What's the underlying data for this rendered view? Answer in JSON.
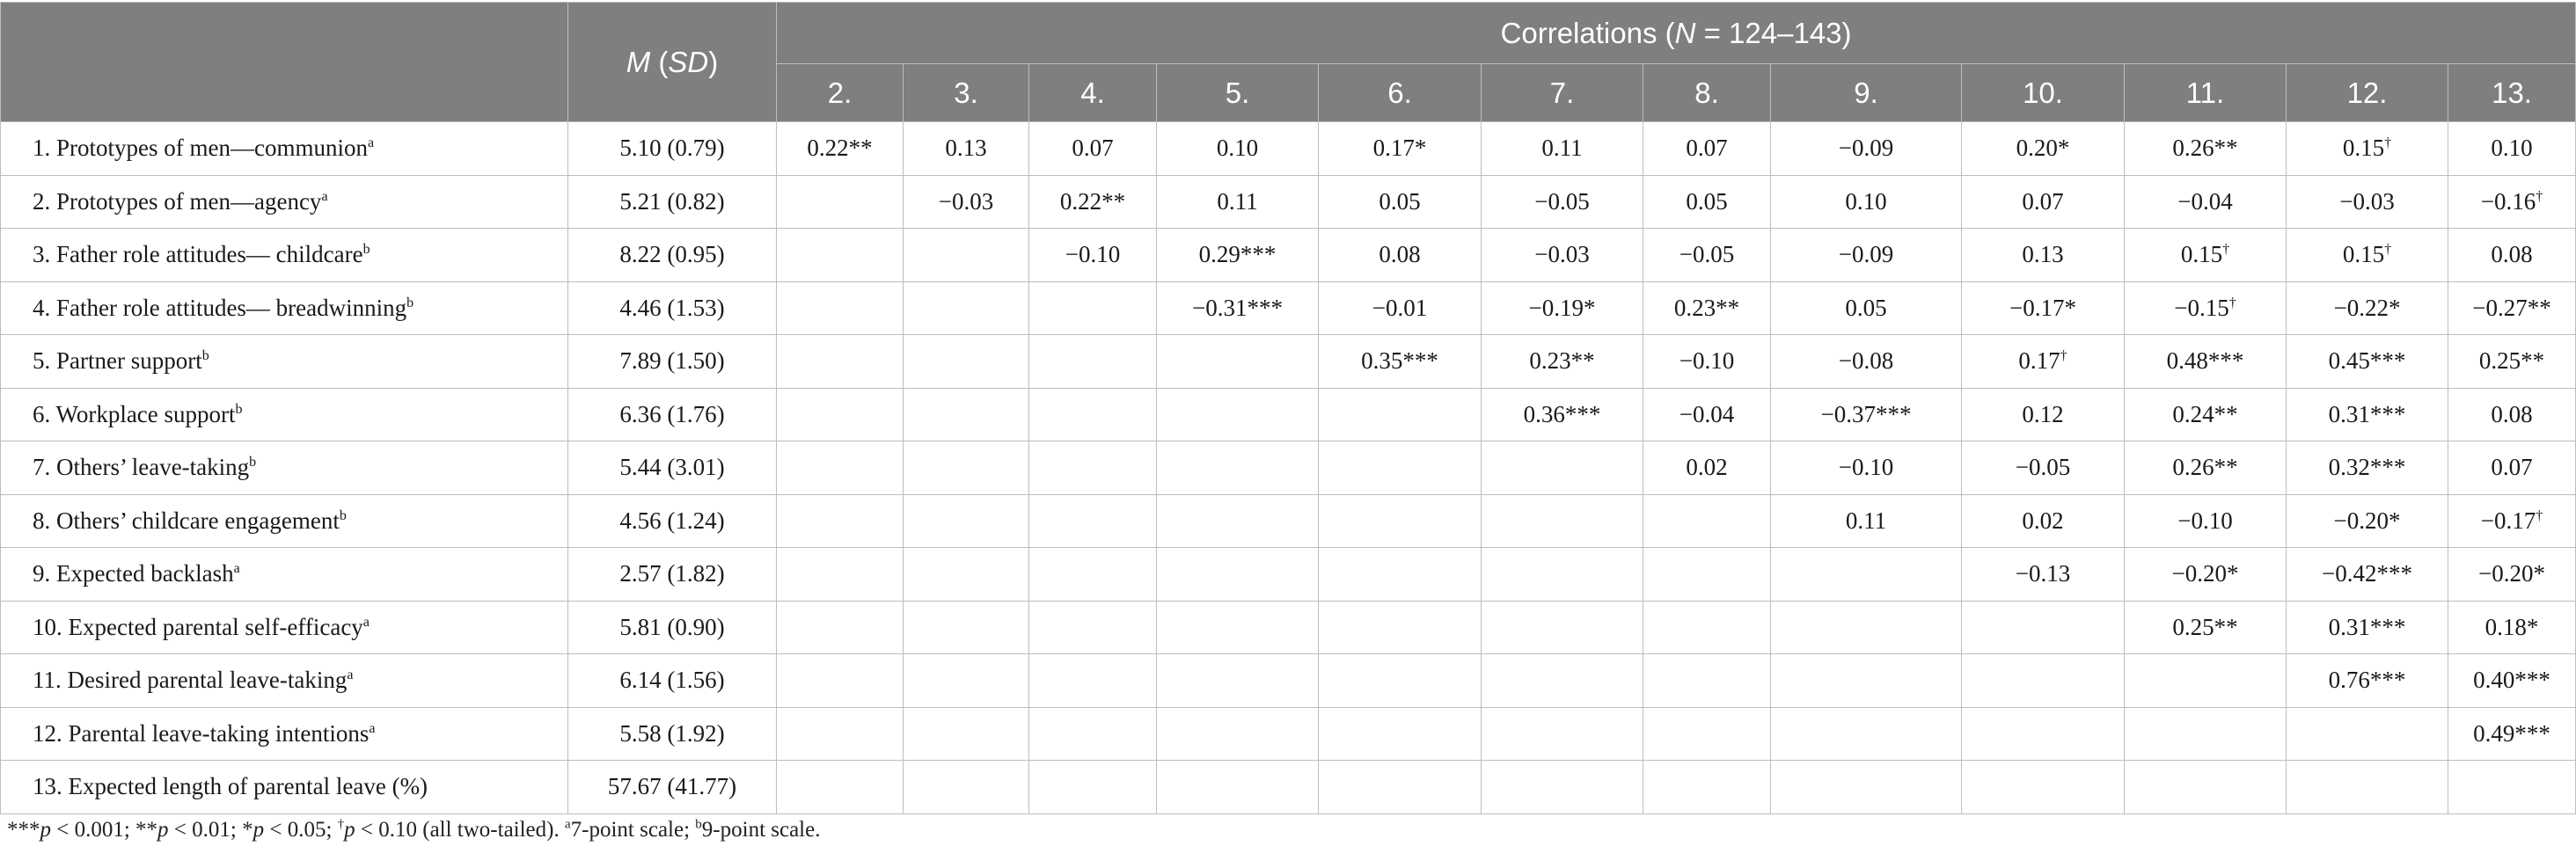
{
  "header": {
    "ms_label_m": "M",
    "ms_label_sd": "SD",
    "corr_prefix": "Correlations (",
    "corr_n": "N",
    "corr_suffix": " = 124–143)",
    "columns": [
      "2.",
      "3.",
      "4.",
      "5.",
      "6.",
      "7.",
      "8.",
      "9.",
      "10.",
      "11.",
      "12.",
      "13."
    ]
  },
  "rows": [
    {
      "label": "1.  Prototypes of men—communion",
      "sup": "a",
      "msd": "5.10 (0.79)",
      "cells": [
        "0.22**",
        "0.13",
        "0.07",
        "0.10",
        "0.17*",
        "0.11",
        "0.07",
        "−0.09",
        "0.20*",
        "0.26**",
        "0.15†",
        "0.10"
      ]
    },
    {
      "label": "2.  Prototypes of men—agency",
      "sup": "a",
      "msd": "5.21 (0.82)",
      "cells": [
        "",
        "−0.03",
        "0.22**",
        "0.11",
        "0.05",
        "−0.05",
        "0.05",
        "0.10",
        "0.07",
        "−0.04",
        "−0.03",
        "−0.16†"
      ]
    },
    {
      "label": "3.  Father role attitudes— childcare",
      "sup": "b",
      "msd": "8.22 (0.95)",
      "cells": [
        "",
        "",
        "−0.10",
        "0.29***",
        "0.08",
        "−0.03",
        "−0.05",
        "−0.09",
        "0.13",
        "0.15†",
        "0.15†",
        "0.08"
      ]
    },
    {
      "label": "4.  Father role attitudes— breadwinning",
      "sup": "b",
      "msd": "4.46 (1.53)",
      "cells": [
        "",
        "",
        "",
        "−0.31***",
        "−0.01",
        "−0.19*",
        "0.23**",
        "0.05",
        "−0.17*",
        "−0.15†",
        "−0.22*",
        "−0.27**"
      ]
    },
    {
      "label": "5.  Partner support",
      "sup": "b",
      "msd": "7.89 (1.50)",
      "cells": [
        "",
        "",
        "",
        "",
        "0.35***",
        "0.23**",
        "−0.10",
        "−0.08",
        "0.17†",
        "0.48***",
        "0.45***",
        "0.25**"
      ]
    },
    {
      "label": "6.  Workplace support",
      "sup": "b",
      "msd": "6.36 (1.76)",
      "cells": [
        "",
        "",
        "",
        "",
        "",
        "0.36***",
        "−0.04",
        "−0.37***",
        "0.12",
        "0.24**",
        "0.31***",
        "0.08"
      ]
    },
    {
      "label": "7.  Others’ leave-taking",
      "sup": "b",
      "msd": "5.44 (3.01)",
      "cells": [
        "",
        "",
        "",
        "",
        "",
        "",
        "0.02",
        "−0.10",
        "−0.05",
        "0.26**",
        "0.32***",
        "0.07"
      ]
    },
    {
      "label": "8.  Others’ childcare engagement",
      "sup": "b",
      "msd": "4.56 (1.24)",
      "cells": [
        "",
        "",
        "",
        "",
        "",
        "",
        "",
        "0.11",
        "0.02",
        "−0.10",
        "−0.20*",
        "−0.17†"
      ]
    },
    {
      "label": "9.  Expected backlash",
      "sup": "a",
      "msd": "2.57 (1.82)",
      "cells": [
        "",
        "",
        "",
        "",
        "",
        "",
        "",
        "",
        "−0.13",
        "−0.20*",
        "−0.42***",
        "−0.20*"
      ]
    },
    {
      "label": "10.  Expected parental self-efficacy",
      "sup": "a",
      "msd": "5.81 (0.90)",
      "cells": [
        "",
        "",
        "",
        "",
        "",
        "",
        "",
        "",
        "",
        "0.25**",
        "0.31***",
        "0.18*"
      ]
    },
    {
      "label": "11.  Desired parental leave-taking",
      "sup": "a",
      "msd": "6.14 (1.56)",
      "cells": [
        "",
        "",
        "",
        "",
        "",
        "",
        "",
        "",
        "",
        "",
        "0.76***",
        "0.40***"
      ]
    },
    {
      "label": "12.  Parental leave-taking intentions",
      "sup": "a",
      "msd": "5.58 (1.92)",
      "cells": [
        "",
        "",
        "",
        "",
        "",
        "",
        "",
        "",
        "",
        "",
        "",
        "0.49***"
      ]
    },
    {
      "label": "13.  Expected length of parental leave (%)",
      "sup": "",
      "msd": "57.67 (41.77)",
      "cells": [
        "",
        "",
        "",
        "",
        "",
        "",
        "",
        "",
        "",
        "",
        "",
        ""
      ]
    }
  ],
  "note": {
    "s1": "***",
    "p1": "p",
    "t1": " < 0.001; **",
    "p2": "p",
    "t2": " < 0.01; *",
    "p3": "p",
    "t3": " < 0.05; ",
    "dagger": "†",
    "p4": "p",
    "t4": " < 0.10 (all two-tailed). ",
    "a": "a",
    "t5": "7-point scale; ",
    "b": "b",
    "t6": "9-point scale."
  }
}
